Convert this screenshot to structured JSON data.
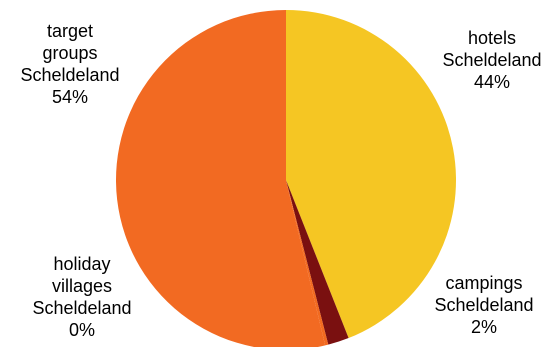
{
  "chart_data": {
    "type": "pie",
    "slices": [
      {
        "label": [
          "hotels",
          "Scheldeland"
        ],
        "percent_label": "44%",
        "value": 44,
        "color": "#F5C623"
      },
      {
        "label": [
          "campings",
          "Scheldeland"
        ],
        "percent_label": "2%",
        "value": 2,
        "color": "#7A1010"
      },
      {
        "label": [
          "holiday",
          "villages",
          "Scheldeland"
        ],
        "percent_label": "0%",
        "value": 0.3,
        "color": "#F26A1F"
      },
      {
        "label": [
          "target",
          "groups",
          "Scheldeland"
        ],
        "percent_label": "54%",
        "value": 53.7,
        "color": "#F26A22"
      }
    ],
    "start_angle_deg": 0,
    "direction": "clockwise",
    "legend": "none"
  }
}
